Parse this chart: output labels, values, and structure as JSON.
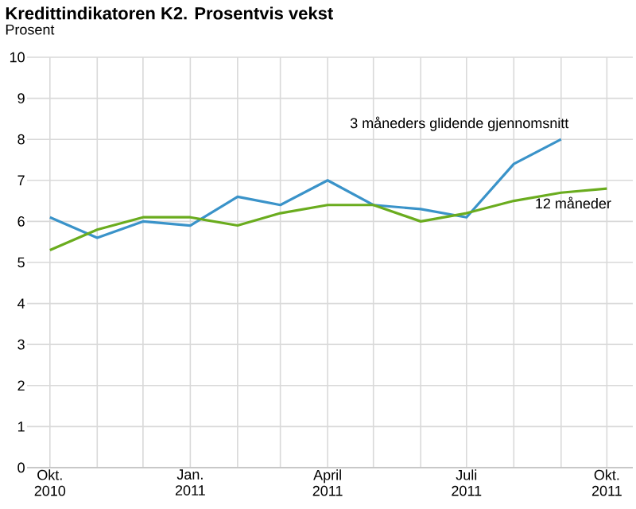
{
  "chart_data": {
    "type": "line",
    "title": "Kredittindikatoren K2. Prosentvis vekst",
    "ylabel": "Prosent",
    "x": [
      "2010-10",
      "2010-11",
      "2010-12",
      "2011-01",
      "2011-02",
      "2011-03",
      "2011-04",
      "2011-05",
      "2011-06",
      "2011-07",
      "2011-08",
      "2011-09",
      "2011-10"
    ],
    "series": [
      {
        "name": "3 måneders glidende gjennomsnitt",
        "color": "#3a93c9",
        "values": [
          6.1,
          5.6,
          6.0,
          5.9,
          6.6,
          6.4,
          7.0,
          6.4,
          6.3,
          6.1,
          7.4,
          8.0,
          null
        ]
      },
      {
        "name": "12 måneder",
        "color": "#6aac1e",
        "values": [
          5.3,
          5.8,
          6.1,
          6.1,
          5.9,
          6.2,
          6.4,
          6.4,
          6.0,
          6.2,
          6.5,
          6.7,
          6.8
        ]
      }
    ],
    "xlim": [
      "2010-09-16",
      "2011-10-18"
    ],
    "ylim": [
      0,
      10
    ],
    "xticks": [
      {
        "value": "2010-10",
        "label": "Okt. 2010"
      },
      {
        "value": "2010-11",
        "label": null
      },
      {
        "value": "2010-12",
        "label": null
      },
      {
        "value": "2011-01",
        "label": "Jan. 2011"
      },
      {
        "value": "2011-02",
        "label": null
      },
      {
        "value": "2011-03",
        "label": null
      },
      {
        "value": "2011-04",
        "label": "April 2011"
      },
      {
        "value": "2011-05",
        "label": null
      },
      {
        "value": "2011-06",
        "label": null
      },
      {
        "value": "2011-07",
        "label": "Juli 2011"
      },
      {
        "value": "2011-08",
        "label": null
      },
      {
        "value": "2011-09",
        "label": null
      },
      {
        "value": "2011-10",
        "label": "Okt. 2011"
      }
    ],
    "yticks": [
      0,
      1,
      2,
      3,
      4,
      5,
      6,
      7,
      8,
      9,
      10
    ],
    "grid": true
  }
}
